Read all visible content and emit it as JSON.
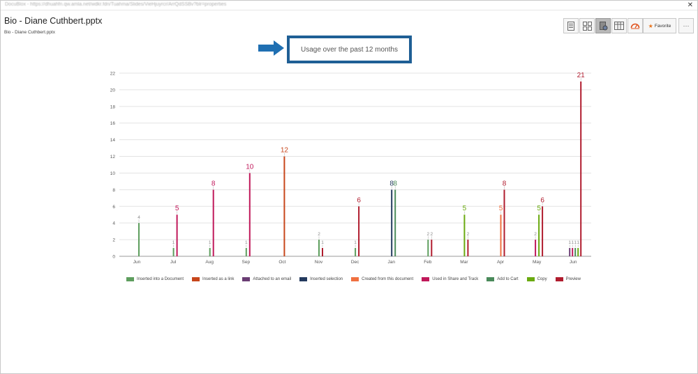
{
  "window": {
    "url": "DocuBlox - https://dhuahfn.qw.amla.net/wdkr.fdn/Tuahma/Slides/VieHjuyrcr/ArrQdSSBv?blr=properties"
  },
  "header": {
    "title": "Bio - Diane Cuthbert.pptx",
    "subtitle": "Bio - Diane Cuthbert.pptx"
  },
  "toolbar": {
    "buttons": [
      {
        "icon": "document-icon",
        "active": false
      },
      {
        "icon": "grid-icon",
        "active": false
      },
      {
        "icon": "usage-icon",
        "active": true
      },
      {
        "icon": "table-icon",
        "active": false
      },
      {
        "icon": "dashboard-icon",
        "active": false
      }
    ],
    "favorite_label": "Favorite",
    "more_label": "···"
  },
  "callout": {
    "text": "Usage over the past 12 months"
  },
  "colors": {
    "accent_border": "#1f5f95",
    "arrow": "#1f6fb2"
  },
  "chart_data": {
    "type": "bar",
    "categories": [
      "Jun",
      "Jul",
      "Aug",
      "Sep",
      "Oct",
      "Nov",
      "Dec",
      "Jan",
      "Feb",
      "Mar",
      "Apr",
      "May",
      "Jun"
    ],
    "ylim": [
      0,
      22
    ],
    "yticks": [
      0,
      2,
      4,
      6,
      8,
      10,
      12,
      14,
      16,
      18,
      20,
      22
    ],
    "grid": true,
    "legend_position": "bottom",
    "series": [
      {
        "name": "Inserted into a Document",
        "color": "#5e9e5e",
        "values": [
          4,
          1,
          1,
          1,
          0,
          2,
          1,
          0,
          2,
          0,
          0,
          0,
          0
        ]
      },
      {
        "name": "Inserted as a link",
        "color": "#c7461b",
        "values": [
          0,
          0,
          0,
          0,
          12,
          0,
          0,
          0,
          0,
          0,
          0,
          0,
          0
        ]
      },
      {
        "name": "Attached to an email",
        "color": "#6a3d74",
        "values": [
          0,
          0,
          0,
          0,
          0,
          0,
          0,
          0,
          0,
          0,
          0,
          0,
          1
        ]
      },
      {
        "name": "Inserted selection",
        "color": "#243a5e",
        "values": [
          0,
          0,
          0,
          0,
          0,
          0,
          0,
          8,
          0,
          0,
          0,
          0,
          0
        ]
      },
      {
        "name": "Created from this document",
        "color": "#f07040",
        "values": [
          0,
          0,
          0,
          0,
          0,
          0,
          0,
          0,
          0,
          0,
          5,
          0,
          0
        ]
      },
      {
        "name": "Used in Share and Track",
        "color": "#c0185a",
        "values": [
          0,
          5,
          8,
          10,
          0,
          0,
          0,
          0,
          0,
          0,
          0,
          2,
          1
        ]
      },
      {
        "name": "Add to Cart",
        "color": "#4a8a5a",
        "values": [
          0,
          0,
          0,
          0,
          0,
          0,
          0,
          8,
          0,
          0,
          0,
          0,
          1
        ]
      },
      {
        "name": "Copy",
        "color": "#6aaa10",
        "values": [
          0,
          0,
          0,
          0,
          0,
          0,
          0,
          0,
          0,
          5,
          0,
          5,
          1
        ]
      },
      {
        "name": "Preview",
        "color": "#b01c2e",
        "values": [
          0,
          0,
          0,
          0,
          0,
          1,
          6,
          0,
          2,
          2,
          8,
          6,
          21
        ]
      }
    ]
  }
}
